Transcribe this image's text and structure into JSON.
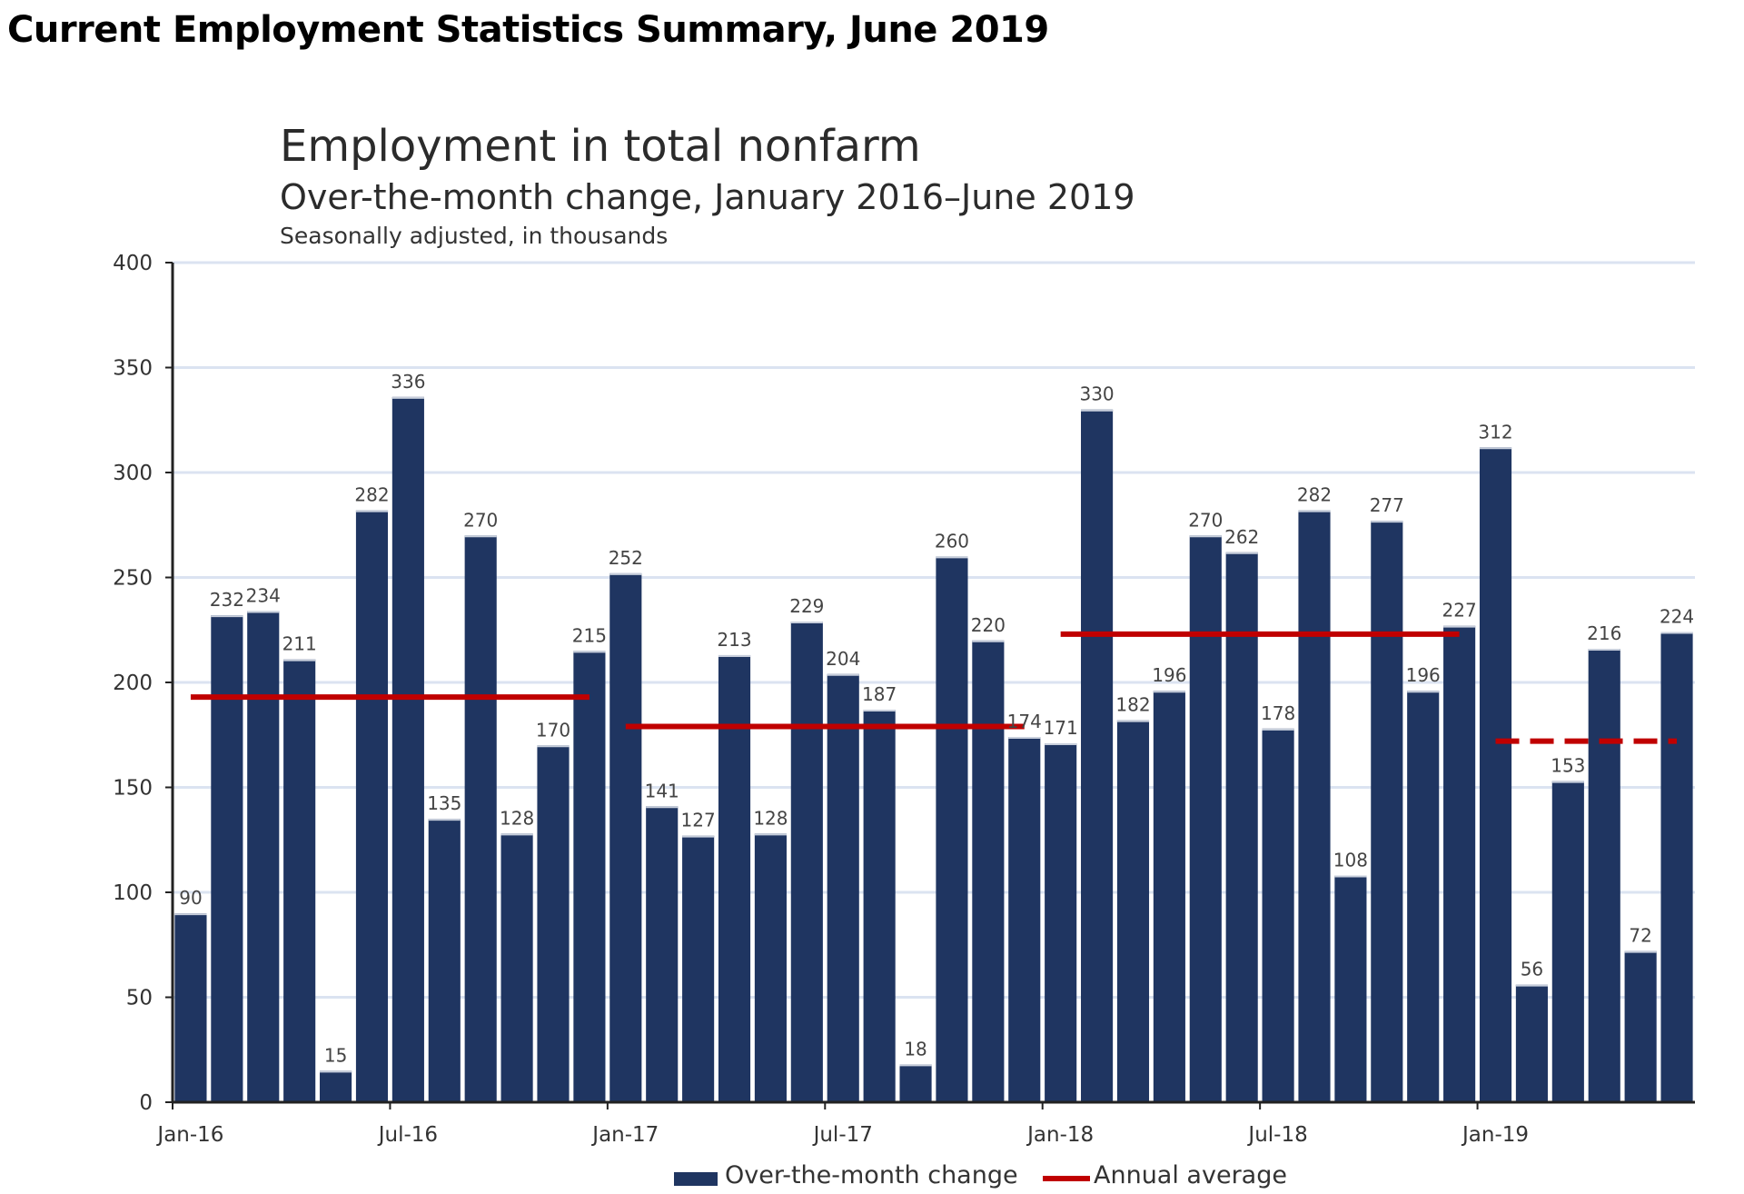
{
  "header": {
    "title": "Current Employment Statistics Summary, June 2019"
  },
  "colors": {
    "bar": "#1f3561",
    "average": "#c00000",
    "grid": "#dbe3f1",
    "axis": "#222222"
  },
  "chart_data": {
    "type": "bar",
    "title": "Employment in total nonfarm",
    "subtitle": "Over-the-month change, January 2016–June 2019",
    "note": "Seasonally adjusted, in thousands",
    "xlabel": "",
    "ylabel": "",
    "ylim": [
      0,
      400
    ],
    "yticks": [
      0,
      50,
      100,
      150,
      200,
      250,
      300,
      350,
      400
    ],
    "grid": true,
    "legend_position": "bottom",
    "x_tick_labels": [
      {
        "index": 0,
        "label": "Jan-16"
      },
      {
        "index": 6,
        "label": "Jul-16"
      },
      {
        "index": 12,
        "label": "Jan-17"
      },
      {
        "index": 18,
        "label": "Jul-17"
      },
      {
        "index": 24,
        "label": "Jan-18"
      },
      {
        "index": 30,
        "label": "Jul-18"
      },
      {
        "index": 36,
        "label": "Jan-19"
      }
    ],
    "categories": [
      "Jan-16",
      "Feb-16",
      "Mar-16",
      "Apr-16",
      "May-16",
      "Jun-16",
      "Jul-16",
      "Aug-16",
      "Sep-16",
      "Oct-16",
      "Nov-16",
      "Dec-16",
      "Jan-17",
      "Feb-17",
      "Mar-17",
      "Apr-17",
      "May-17",
      "Jun-17",
      "Jul-17",
      "Aug-17",
      "Sep-17",
      "Oct-17",
      "Nov-17",
      "Dec-17",
      "Jan-18",
      "Feb-18",
      "Mar-18",
      "Apr-18",
      "May-18",
      "Jun-18",
      "Jul-18",
      "Aug-18",
      "Sep-18",
      "Oct-18",
      "Nov-18",
      "Dec-18",
      "Jan-19",
      "Feb-19",
      "Mar-19",
      "Apr-19",
      "May-19",
      "Jun-19"
    ],
    "series": [
      {
        "name": "Over-the-month change",
        "values": [
          90,
          232,
          234,
          211,
          15,
          282,
          336,
          135,
          270,
          128,
          170,
          215,
          252,
          141,
          127,
          213,
          128,
          229,
          204,
          187,
          18,
          260,
          220,
          174,
          171,
          330,
          182,
          196,
          270,
          262,
          178,
          282,
          108,
          277,
          196,
          227,
          312,
          56,
          153,
          216,
          72,
          224
        ]
      }
    ],
    "annual_averages": [
      {
        "year": "2016",
        "value": 193,
        "style": "solid"
      },
      {
        "year": "2017",
        "value": 179,
        "style": "solid"
      },
      {
        "year": "2018",
        "value": 223,
        "style": "solid"
      },
      {
        "year": "2019",
        "value": 172,
        "style": "dashed"
      }
    ],
    "legend": [
      {
        "label": "Over-the-month change",
        "kind": "bar"
      },
      {
        "label": "Annual average",
        "kind": "line"
      }
    ]
  }
}
